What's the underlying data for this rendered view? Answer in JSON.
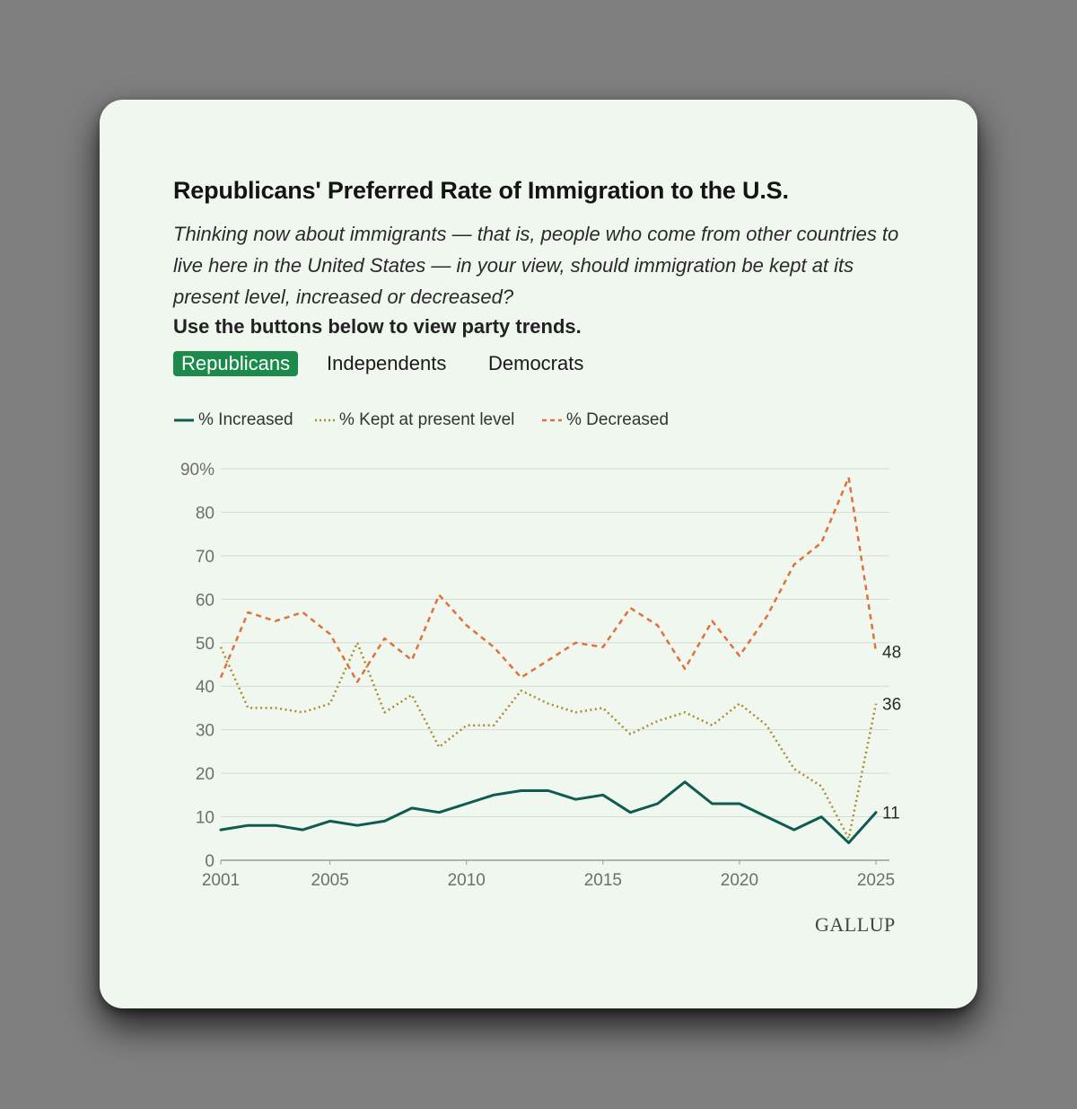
{
  "header": {
    "title": "Republicans' Preferred Rate of Immigration to the U.S.",
    "question": "Thinking now about immigrants — that is, people who come from other countries to live here in the United States — in your view, should immigration be kept at its present level, increased or decreased?",
    "instruction": "Use the buttons below to view party trends."
  },
  "tabs": [
    {
      "label": "Republicans",
      "active": true
    },
    {
      "label": "Independents",
      "active": false
    },
    {
      "label": "Democrats",
      "active": false
    }
  ],
  "colors": {
    "card_background": "#f0f7ef",
    "active_tab": "#1c8a4b",
    "increased": "#0e5c4f",
    "kept": "#a88e2a",
    "decreased": "#e0713b",
    "grid": "#d5dbd4",
    "tick_text": "#6e6e6e"
  },
  "chart_data": {
    "type": "line",
    "x": [
      2001,
      2002,
      2003,
      2004,
      2005,
      2006,
      2007,
      2008,
      2009,
      2010,
      2011,
      2012,
      2013,
      2014,
      2015,
      2016,
      2017,
      2018,
      2019,
      2020,
      2021,
      2022,
      2023,
      2024,
      2025
    ],
    "series": [
      {
        "name": "% Increased",
        "line_style": "solid",
        "color": "#0e5c4f",
        "values": [
          7,
          8,
          8,
          7,
          9,
          8,
          9,
          12,
          11,
          13,
          15,
          16,
          16,
          14,
          15,
          11,
          13,
          18,
          13,
          13,
          10,
          7,
          10,
          4,
          11
        ]
      },
      {
        "name": "% Kept at present level",
        "line_style": "dotted",
        "color": "#a88e2a",
        "values": [
          49,
          35,
          35,
          34,
          36,
          50,
          34,
          38,
          26,
          31,
          31,
          39,
          36,
          34,
          35,
          29,
          32,
          34,
          31,
          36,
          31,
          21,
          17,
          5,
          36
        ]
      },
      {
        "name": "% Decreased",
        "line_style": "dashed",
        "color": "#e0713b",
        "values": [
          42,
          57,
          55,
          57,
          52,
          41,
          51,
          46,
          61,
          54,
          49,
          42,
          46,
          50,
          49,
          58,
          54,
          44,
          55,
          47,
          56,
          68,
          73,
          88,
          48
        ]
      }
    ],
    "end_labels": [
      "11",
      "36",
      "48"
    ],
    "xticks": [
      2001,
      2005,
      2010,
      2015,
      2020,
      2025
    ],
    "xtick_labels": [
      "2001",
      "2005",
      "2010",
      "2015",
      "2020",
      "2025"
    ],
    "yticks": [
      0,
      10,
      20,
      30,
      40,
      50,
      60,
      70,
      80,
      90
    ],
    "ytick_labels": [
      "0",
      "10",
      "20",
      "30",
      "40",
      "50",
      "60",
      "70",
      "80",
      "90%"
    ],
    "ylim": [
      0,
      90
    ],
    "xlim": [
      2001,
      2025
    ],
    "grid": true,
    "legend_position": "top-left"
  },
  "footer": {
    "brand": "GALLUP"
  }
}
